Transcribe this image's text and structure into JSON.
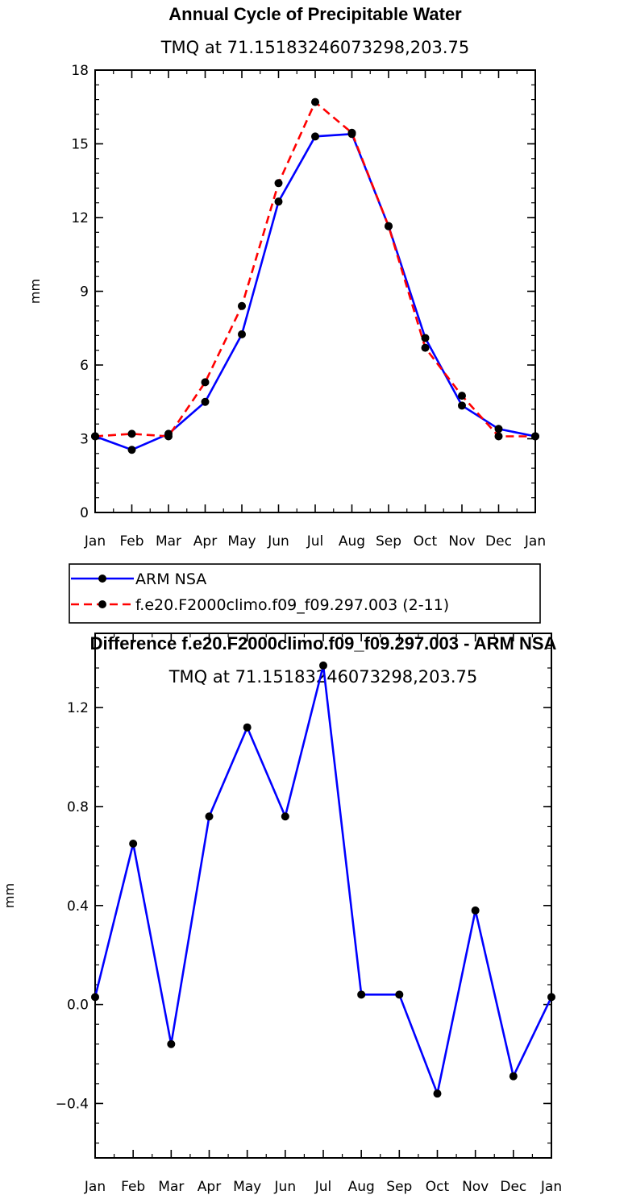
{
  "chart_data": [
    {
      "type": "line",
      "title": "Annual Cycle of Precipitable Water",
      "subtitle": "TMQ  at  71.15183246073298,203.75",
      "xlabel": "",
      "ylabel": "mm",
      "categories": [
        "Jan",
        "Feb",
        "Mar",
        "Apr",
        "May",
        "Jun",
        "Jul",
        "Aug",
        "Sep",
        "Oct",
        "Nov",
        "Dec",
        "Jan"
      ],
      "ylim": [
        0,
        18
      ],
      "yticks": [
        0,
        3,
        6,
        9,
        12,
        15,
        18
      ],
      "ytick_labels": [
        "0",
        "3",
        "6",
        "9",
        "12",
        "15",
        "18"
      ],
      "grid": false,
      "legend_position": "below",
      "series": [
        {
          "name": "ARM NSA",
          "color": "#0000ff",
          "style": "solid",
          "values": [
            3.1,
            2.55,
            3.2,
            4.5,
            7.25,
            12.65,
            15.3,
            15.4,
            11.65,
            7.1,
            4.35,
            3.4,
            3.1
          ]
        },
        {
          "name": "f.e20.F2000climo.f09_f09.297.003 (2-11)",
          "color": "#ff0000",
          "style": "dashed",
          "values": [
            3.1,
            3.2,
            3.1,
            5.3,
            8.4,
            13.4,
            16.7,
            15.45,
            11.65,
            6.7,
            4.75,
            3.1,
            3.1
          ]
        }
      ]
    },
    {
      "type": "line",
      "title": "Difference f.e20.F2000climo.f09_f09.297.003 - ARM NSA",
      "subtitle": "TMQ  at  71.15183246073298,203.75",
      "xlabel": "",
      "ylabel": "mm",
      "categories": [
        "Jan",
        "Feb",
        "Mar",
        "Apr",
        "May",
        "Jun",
        "Jul",
        "Aug",
        "Sep",
        "Oct",
        "Nov",
        "Dec",
        "Jan"
      ],
      "ylim": [
        -0.62,
        1.5
      ],
      "yticks": [
        -0.4,
        0.0,
        0.4,
        0.8,
        1.2
      ],
      "ytick_labels": [
        "−0.4",
        "0.0",
        "0.4",
        "0.8",
        "1.2"
      ],
      "grid": false,
      "series": [
        {
          "name": "Difference",
          "color": "#0000ff",
          "style": "solid",
          "values": [
            0.03,
            0.65,
            -0.16,
            0.76,
            1.12,
            0.76,
            1.37,
            0.04,
            0.04,
            -0.36,
            0.38,
            -0.29,
            0.03
          ]
        }
      ]
    }
  ]
}
